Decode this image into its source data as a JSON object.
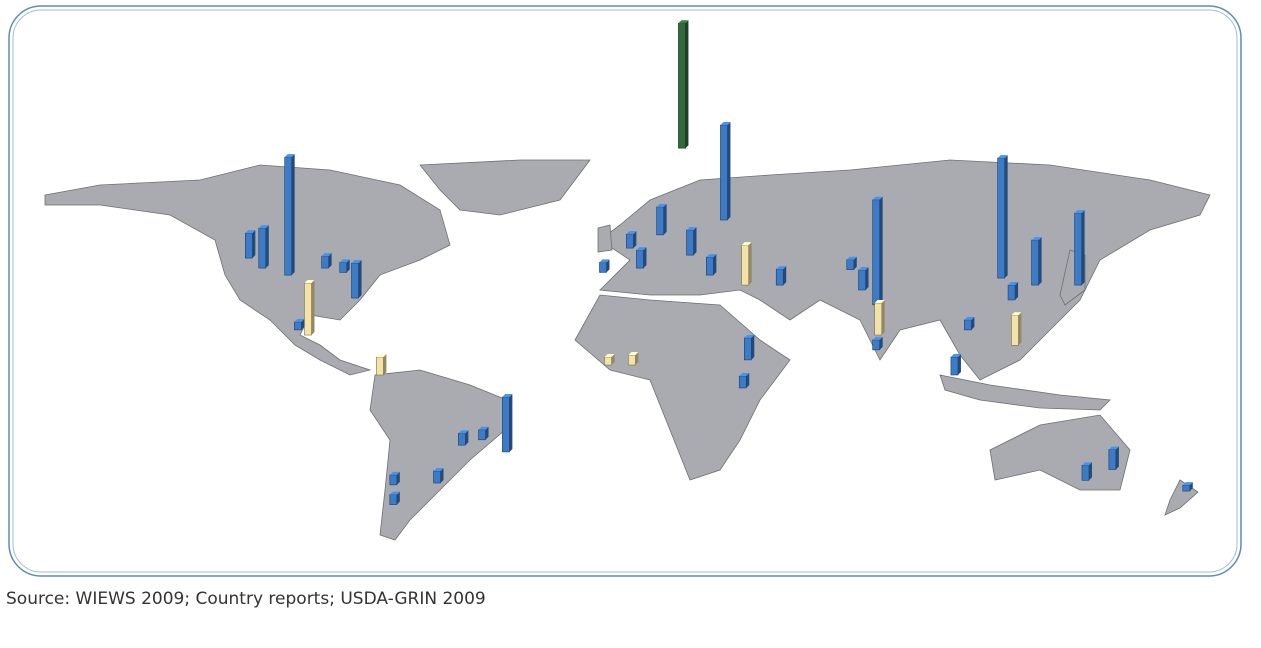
{
  "chart_data": {
    "type": "map",
    "source": "Source: WIEWS 2009; Country reports; USDA-GRIN 2009",
    "series": [
      {
        "color": "#3b7bc8",
        "lon": [
          -94.3,
          -102,
          -106,
          -83.3,
          -74.4,
          -77.9,
          -91.4,
          -29.5,
          -42.6,
          -36.6,
          -50,
          -63,
          -63,
          16.4,
          7.4,
          -0.6,
          25.3,
          35.4,
          31.2,
          52,
          42.5,
          41,
          80.7,
          76.5,
          80.7,
          117.9,
          128,
          140.8,
          104,
          121,
          143,
          151,
          173,
          73,
          108,
          10.4
        ],
        "lat": [
          37,
          39.6,
          43.3,
          39.6,
          28.5,
          38,
          16.7,
          -28.5,
          -26,
          -24,
          -40,
          -40.7,
          -48,
          51.9,
          47,
          38,
          44.4,
          57.4,
          37,
          33.3,
          5.6,
          -4.8,
          26,
          31.5,
          9.3,
          35.9,
          33.3,
          33.3,
          0,
          27.8,
          -39,
          -35,
          -43,
          39,
          16.7,
          39.6
        ],
        "values": [
          118,
          40,
          25,
          12,
          35,
          10,
          8,
          55,
          12,
          10,
          12,
          10,
          10,
          28,
          14,
          10,
          25,
          95,
          18,
          16,
          22,
          12,
          105,
          20,
          10,
          120,
          45,
          72,
          18,
          15,
          15,
          20,
          6,
          10,
          10,
          18
        ]
      },
      {
        "color": "#f3e3a6",
        "lon": [
          -88.4,
          -67,
          41.7,
          0.9,
          8,
          81.3,
          122
        ],
        "lat": [
          14.8,
          0,
          33.3,
          3.7,
          3.7,
          14.8,
          11
        ],
        "values": [
          52,
          18,
          40,
          8,
          10,
          32,
          30
        ]
      },
      {
        "color": "#2f6b3a",
        "lon": [
          22.9
        ],
        "lat": [
          84
        ],
        "values": [
          125
        ]
      }
    ]
  }
}
